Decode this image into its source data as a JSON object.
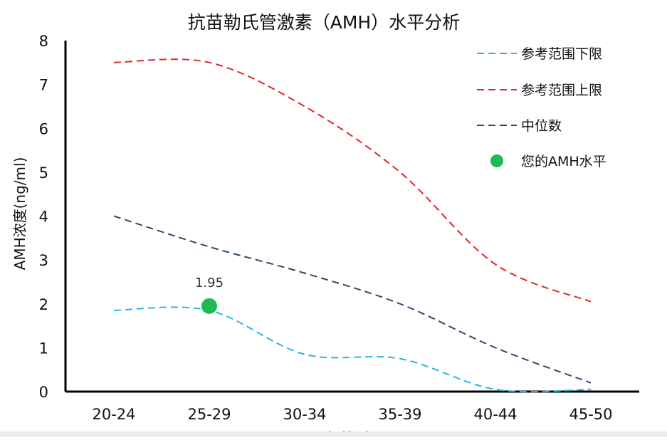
{
  "chart_data": {
    "type": "line",
    "title": "抗苗勒氏管激素（AMH）水平分析",
    "xlabel": "年龄(岁)",
    "ylabel": "AMH浓度(ng/ml)",
    "categories": [
      "20-24",
      "25-29",
      "30-34",
      "35-39",
      "40-44",
      "45-50"
    ],
    "ylim": [
      0,
      8
    ],
    "yticks": [
      0,
      1,
      2,
      3,
      4,
      5,
      6,
      7,
      8
    ],
    "grid": false,
    "legend_position": "top-right",
    "series": [
      {
        "name": "参考范围下限",
        "values": [
          1.85,
          1.85,
          0.85,
          0.75,
          0.05,
          0.05
        ],
        "color": "#29b6e0",
        "style": "dashed"
      },
      {
        "name": "参考范围上限",
        "values": [
          7.5,
          7.5,
          6.5,
          5.0,
          2.9,
          2.05
        ],
        "color": "#e0262b",
        "style": "dashed"
      },
      {
        "name": "中位数",
        "values": [
          4.0,
          3.3,
          2.7,
          2.0,
          1.0,
          0.2
        ],
        "color": "#2f4a6b",
        "style": "dashed"
      }
    ],
    "points": [
      {
        "name": "您的AMH水平",
        "x": "25-29",
        "y": 1.95,
        "label": "1.95",
        "color": "#1db954"
      }
    ]
  }
}
